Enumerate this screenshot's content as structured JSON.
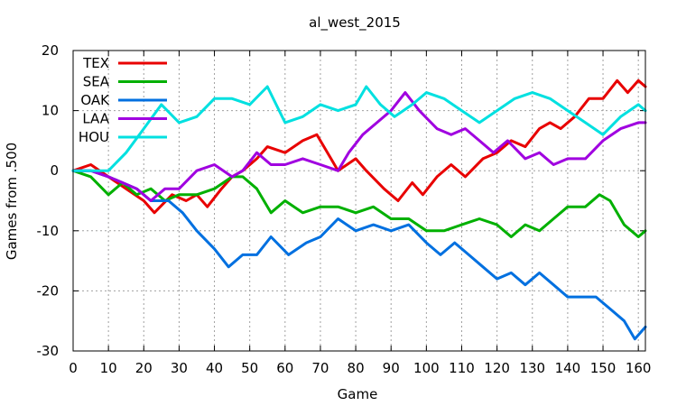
{
  "chart_data": {
    "type": "line",
    "title": "al_west_2015",
    "xlabel": "Game",
    "ylabel": "Games from .500",
    "xlim": [
      0,
      162
    ],
    "ylim": [
      -30,
      20
    ],
    "x_ticks": [
      0,
      10,
      20,
      30,
      40,
      50,
      60,
      70,
      80,
      90,
      100,
      110,
      120,
      130,
      140,
      150,
      160
    ],
    "y_ticks": [
      -30,
      -20,
      -10,
      0,
      10,
      20
    ],
    "grid": true,
    "legend_position": "top-left",
    "series": [
      {
        "name": "TEX",
        "color": "#e80000",
        "points": [
          [
            0,
            0
          ],
          [
            5,
            1
          ],
          [
            10,
            -1
          ],
          [
            15,
            -3
          ],
          [
            20,
            -5
          ],
          [
            23,
            -7
          ],
          [
            28,
            -4
          ],
          [
            32,
            -5
          ],
          [
            35,
            -4
          ],
          [
            38,
            -6
          ],
          [
            42,
            -3
          ],
          [
            45,
            -1
          ],
          [
            48,
            0
          ],
          [
            52,
            2
          ],
          [
            55,
            4
          ],
          [
            60,
            3
          ],
          [
            65,
            5
          ],
          [
            69,
            6
          ],
          [
            73,
            2
          ],
          [
            75,
            0
          ],
          [
            80,
            2
          ],
          [
            83,
            0
          ],
          [
            88,
            -3
          ],
          [
            92,
            -5
          ],
          [
            96,
            -2
          ],
          [
            99,
            -4
          ],
          [
            103,
            -1
          ],
          [
            107,
            1
          ],
          [
            111,
            -1
          ],
          [
            116,
            2
          ],
          [
            120,
            3
          ],
          [
            124,
            5
          ],
          [
            128,
            4
          ],
          [
            132,
            7
          ],
          [
            135,
            8
          ],
          [
            138,
            7
          ],
          [
            142,
            9
          ],
          [
            146,
            12
          ],
          [
            150,
            12
          ],
          [
            154,
            15
          ],
          [
            157,
            13
          ],
          [
            160,
            15
          ],
          [
            162,
            14
          ]
        ]
      },
      {
        "name": "SEA",
        "color": "#00b000",
        "points": [
          [
            0,
            0
          ],
          [
            5,
            -1
          ],
          [
            10,
            -4
          ],
          [
            14,
            -2
          ],
          [
            18,
            -4
          ],
          [
            22,
            -3
          ],
          [
            26,
            -5
          ],
          [
            30,
            -4
          ],
          [
            35,
            -4
          ],
          [
            40,
            -3
          ],
          [
            45,
            -1
          ],
          [
            48,
            -1
          ],
          [
            52,
            -3
          ],
          [
            56,
            -7
          ],
          [
            60,
            -5
          ],
          [
            65,
            -7
          ],
          [
            70,
            -6
          ],
          [
            75,
            -6
          ],
          [
            80,
            -7
          ],
          [
            85,
            -6
          ],
          [
            90,
            -8
          ],
          [
            95,
            -8
          ],
          [
            100,
            -10
          ],
          [
            105,
            -10
          ],
          [
            110,
            -9
          ],
          [
            115,
            -8
          ],
          [
            120,
            -9
          ],
          [
            124,
            -11
          ],
          [
            128,
            -9
          ],
          [
            132,
            -10
          ],
          [
            136,
            -8
          ],
          [
            140,
            -6
          ],
          [
            145,
            -6
          ],
          [
            149,
            -4
          ],
          [
            152,
            -5
          ],
          [
            156,
            -9
          ],
          [
            160,
            -11
          ],
          [
            162,
            -10
          ]
        ]
      },
      {
        "name": "OAK",
        "color": "#0070e0",
        "points": [
          [
            0,
            0
          ],
          [
            5,
            0
          ],
          [
            10,
            -1
          ],
          [
            14,
            -2
          ],
          [
            18,
            -3
          ],
          [
            22,
            -5
          ],
          [
            27,
            -5
          ],
          [
            31,
            -7
          ],
          [
            35,
            -10
          ],
          [
            40,
            -13
          ],
          [
            44,
            -16
          ],
          [
            48,
            -14
          ],
          [
            52,
            -14
          ],
          [
            56,
            -11
          ],
          [
            61,
            -14
          ],
          [
            66,
            -12
          ],
          [
            70,
            -11
          ],
          [
            75,
            -8
          ],
          [
            80,
            -10
          ],
          [
            85,
            -9
          ],
          [
            90,
            -10
          ],
          [
            95,
            -9
          ],
          [
            100,
            -12
          ],
          [
            104,
            -14
          ],
          [
            108,
            -12
          ],
          [
            112,
            -14
          ],
          [
            116,
            -16
          ],
          [
            120,
            -18
          ],
          [
            124,
            -17
          ],
          [
            128,
            -19
          ],
          [
            132,
            -17
          ],
          [
            136,
            -19
          ],
          [
            140,
            -21
          ],
          [
            144,
            -21
          ],
          [
            148,
            -21
          ],
          [
            152,
            -23
          ],
          [
            156,
            -25
          ],
          [
            159,
            -28
          ],
          [
            162,
            -26
          ]
        ]
      },
      {
        "name": "LAA",
        "color": "#a000e0",
        "points": [
          [
            0,
            0
          ],
          [
            5,
            0
          ],
          [
            10,
            -1
          ],
          [
            14,
            -2
          ],
          [
            18,
            -3
          ],
          [
            22,
            -5
          ],
          [
            26,
            -3
          ],
          [
            30,
            -3
          ],
          [
            35,
            0
          ],
          [
            40,
            1
          ],
          [
            45,
            -1
          ],
          [
            48,
            0
          ],
          [
            52,
            3
          ],
          [
            56,
            1
          ],
          [
            60,
            1
          ],
          [
            65,
            2
          ],
          [
            70,
            1
          ],
          [
            75,
            0
          ],
          [
            78,
            3
          ],
          [
            82,
            6
          ],
          [
            86,
            8
          ],
          [
            90,
            10
          ],
          [
            94,
            13
          ],
          [
            98,
            10
          ],
          [
            103,
            7
          ],
          [
            107,
            6
          ],
          [
            111,
            7
          ],
          [
            115,
            5
          ],
          [
            119,
            3
          ],
          [
            123,
            5
          ],
          [
            128,
            2
          ],
          [
            132,
            3
          ],
          [
            136,
            1
          ],
          [
            140,
            2
          ],
          [
            145,
            2
          ],
          [
            150,
            5
          ],
          [
            155,
            7
          ],
          [
            160,
            8
          ],
          [
            162,
            8
          ]
        ]
      },
      {
        "name": "HOU",
        "color": "#00e0e0",
        "points": [
          [
            0,
            0
          ],
          [
            5,
            0
          ],
          [
            10,
            0
          ],
          [
            15,
            3
          ],
          [
            20,
            7
          ],
          [
            25,
            11
          ],
          [
            30,
            8
          ],
          [
            35,
            9
          ],
          [
            40,
            12
          ],
          [
            45,
            12
          ],
          [
            50,
            11
          ],
          [
            55,
            14
          ],
          [
            60,
            8
          ],
          [
            65,
            9
          ],
          [
            70,
            11
          ],
          [
            75,
            10
          ],
          [
            80,
            11
          ],
          [
            83,
            14
          ],
          [
            87,
            11
          ],
          [
            91,
            9
          ],
          [
            96,
            11
          ],
          [
            100,
            13
          ],
          [
            105,
            12
          ],
          [
            110,
            10
          ],
          [
            115,
            8
          ],
          [
            120,
            10
          ],
          [
            125,
            12
          ],
          [
            130,
            13
          ],
          [
            135,
            12
          ],
          [
            140,
            10
          ],
          [
            145,
            8
          ],
          [
            150,
            6
          ],
          [
            155,
            9
          ],
          [
            160,
            11
          ],
          [
            162,
            10
          ]
        ]
      }
    ]
  }
}
